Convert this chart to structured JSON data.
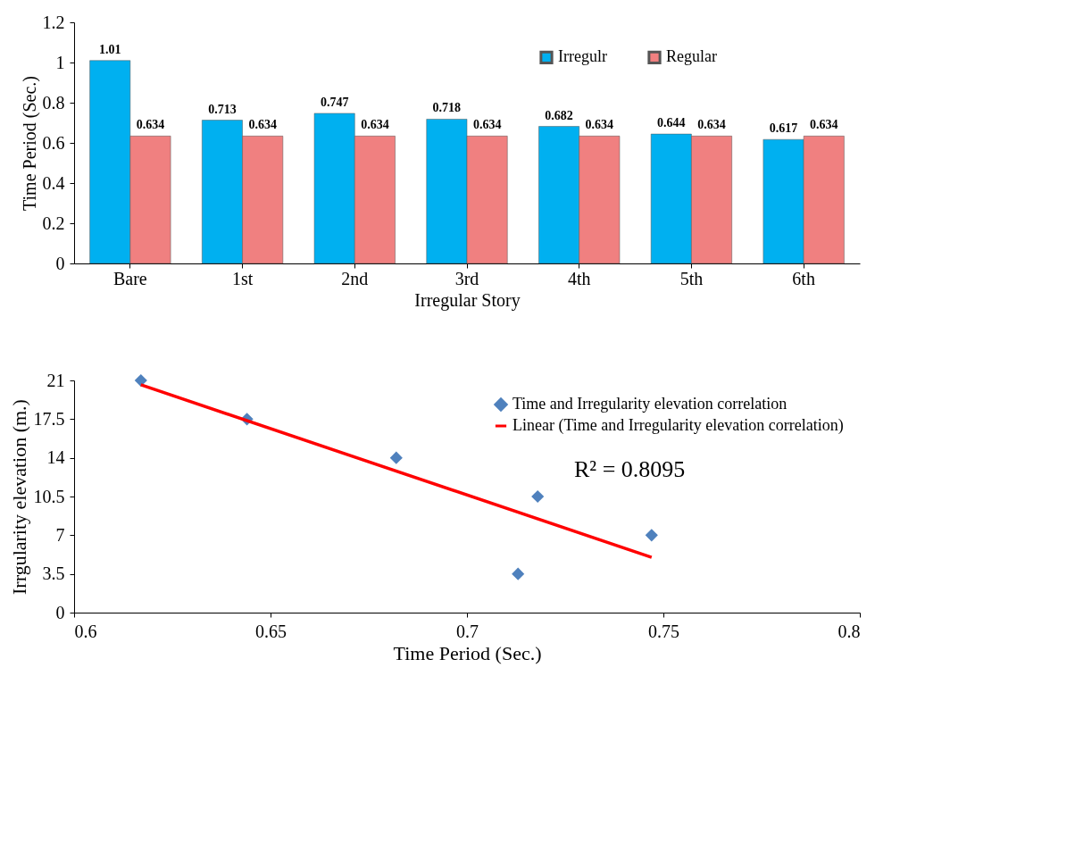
{
  "chart_data": [
    {
      "type": "bar",
      "xlabel": "Irregular Story",
      "ylabel": "Time Period (Sec.)",
      "categories": [
        "Bare",
        "1st",
        "2nd",
        "3rd",
        "4th",
        "5th",
        "6th"
      ],
      "series": [
        {
          "name": "Irregulr",
          "color": "#00b0f0",
          "values": [
            1.01,
            0.713,
            0.747,
            0.718,
            0.682,
            0.644,
            0.617
          ]
        },
        {
          "name": "Regular",
          "color": "#f08080",
          "values": [
            0.634,
            0.634,
            0.634,
            0.634,
            0.634,
            0.634,
            0.634
          ]
        }
      ],
      "ylim": [
        0,
        1.2
      ],
      "yticks": [
        0,
        0.2,
        0.4,
        0.6,
        0.8,
        1,
        1.2
      ],
      "data_labels": true,
      "legend": "top right"
    },
    {
      "type": "scatter",
      "xlabel": "Time Period (Sec.)",
      "ylabel": "Irrgularity elevation (m.)",
      "series": [
        {
          "name": "Time and Irregularity elevation correlation",
          "color": "#4f81bd",
          "marker": "diamond",
          "x": [
            0.617,
            0.644,
            0.682,
            0.713,
            0.718,
            0.747
          ],
          "values": [
            21,
            17.5,
            14,
            3.5,
            10.5,
            7
          ]
        },
        {
          "type": "line",
          "name": "Linear (Time and Irregularity elevation correlation)",
          "color": "#ff0000",
          "x": [
            0.617,
            0.747
          ],
          "values": [
            20.6,
            5.0
          ]
        }
      ],
      "xlim": [
        0.6,
        0.8
      ],
      "xticks": [
        0.6,
        0.65,
        0.7,
        0.75,
        0.8
      ],
      "ylim": [
        0,
        21
      ],
      "yticks": [
        0,
        3.5,
        7,
        10.5,
        14,
        17.5,
        21
      ],
      "legend": "top right",
      "annotations": [
        "R² = 0.8095"
      ]
    }
  ]
}
